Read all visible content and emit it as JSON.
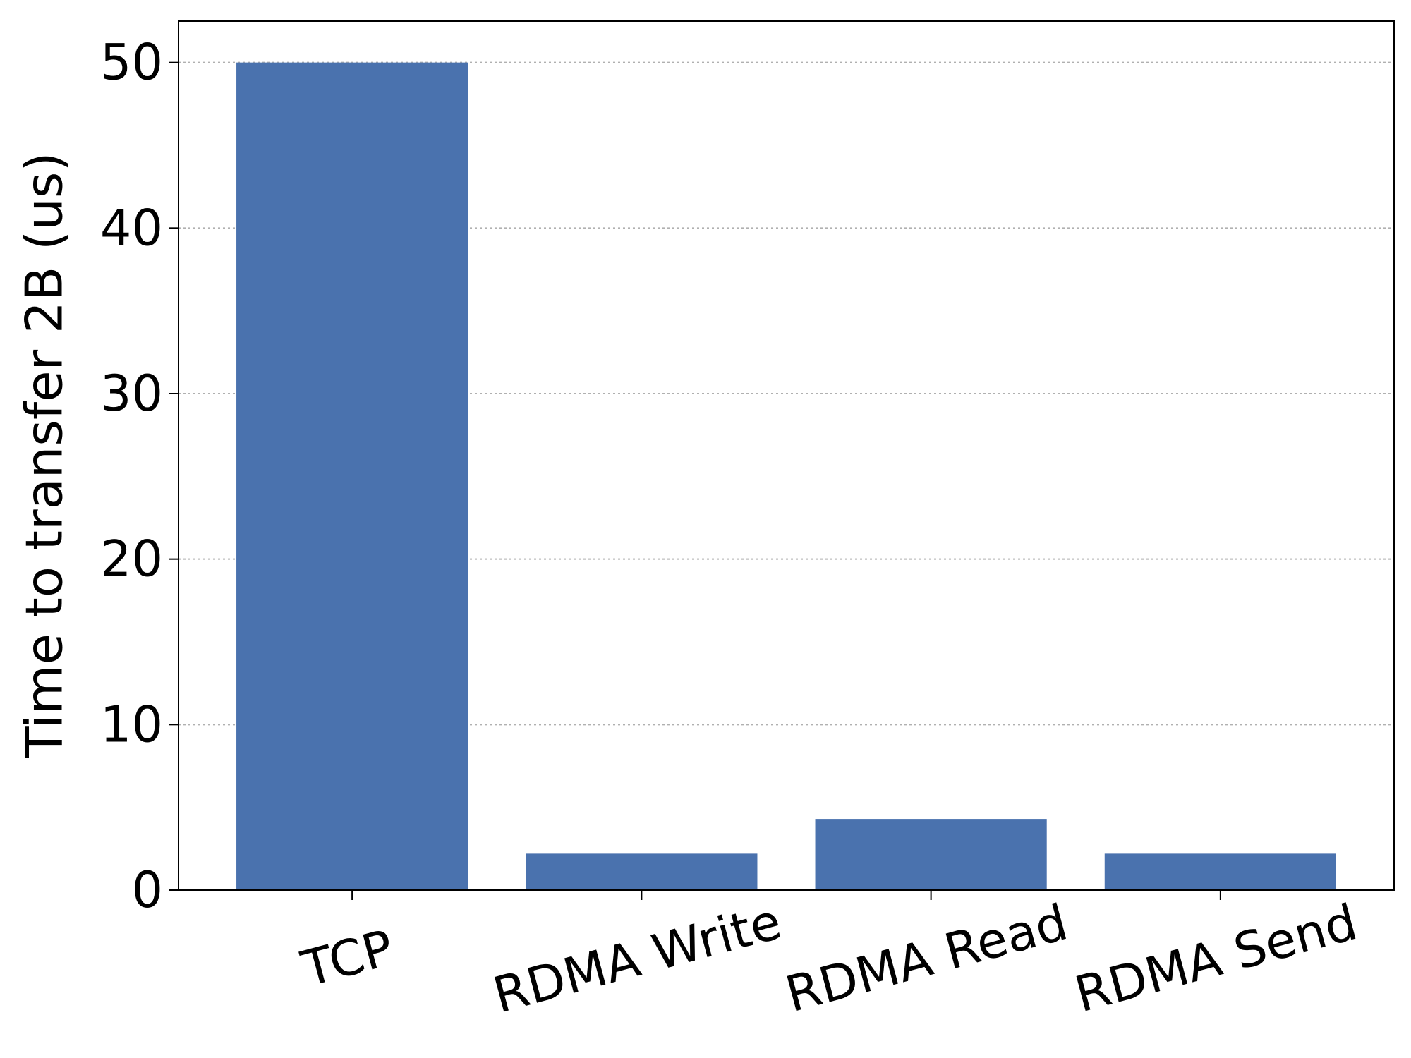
{
  "chart_data": {
    "type": "bar",
    "categories": [
      "TCP",
      "RDMA Write",
      "RDMA Read",
      "RDMA Send"
    ],
    "values": [
      50.0,
      2.2,
      4.3,
      2.2
    ],
    "ylabel": "Time to transfer 2B (us)",
    "xlabel": "",
    "ylim": [
      0,
      52.5
    ],
    "yticks": [
      0,
      10,
      20,
      30,
      40,
      50
    ],
    "grid": "horizontal dotted",
    "bar_color": "#4a72ae"
  }
}
